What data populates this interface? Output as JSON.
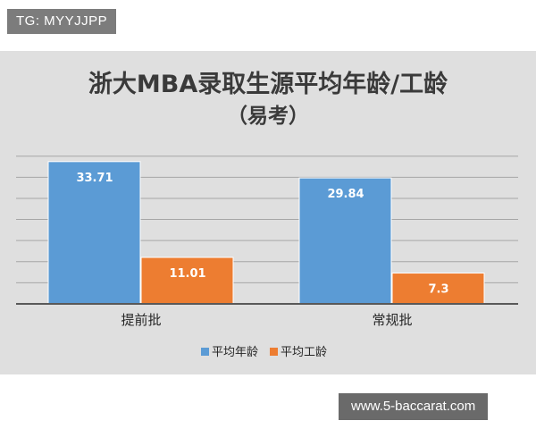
{
  "watermarks": {
    "top": "TG: MYYJJPP",
    "bottom": "www.5-baccarat.com"
  },
  "chart_data": {
    "type": "bar",
    "title": "浙大MBA录取生源平均年龄/工龄",
    "subtitle": "（易考）",
    "xlabel": "",
    "ylabel": "",
    "categories": [
      "提前批",
      "常规批"
    ],
    "series": [
      {
        "name": "平均年龄",
        "values": [
          33.71,
          29.84
        ],
        "labels": [
          "33.71",
          "29.84"
        ],
        "color": "#5b9bd5"
      },
      {
        "name": "平均工龄",
        "values": [
          11.01,
          7.3
        ],
        "labels": [
          "11.01",
          "7.3"
        ],
        "color": "#ed7d31"
      }
    ],
    "ylim": [
      0,
      36
    ],
    "gridlines": [
      0,
      5,
      10,
      15,
      20,
      25,
      30,
      35
    ],
    "grid": true,
    "legend": "bottom",
    "colors": {
      "background": "#dfdfdf",
      "gridline": "#a6a6a6",
      "axis": "#595959",
      "title": "#3a3a3a"
    }
  }
}
